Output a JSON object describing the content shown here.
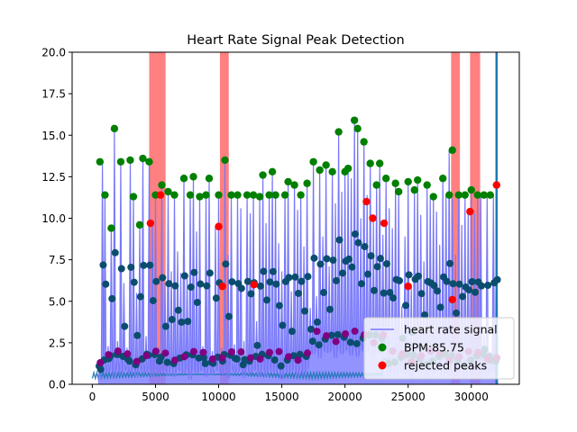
{
  "chart_data": {
    "type": "line",
    "title": "Heart Rate Signal Peak Detection",
    "xlabel": "",
    "ylabel": "",
    "xlim": [
      -1600,
      33800
    ],
    "ylim": [
      0,
      20
    ],
    "xticks": [
      0,
      5000,
      10000,
      15000,
      20000,
      25000,
      30000
    ],
    "yticks": [
      0.0,
      2.5,
      5.0,
      7.5,
      10.0,
      12.5,
      15.0,
      17.5,
      20.0
    ],
    "ytick_labels": [
      "0.0",
      "2.5",
      "5.0",
      "7.5",
      "10.0",
      "12.5",
      "15.0",
      "17.5",
      "20.0"
    ],
    "legend_position": "lower-right",
    "legend": [
      {
        "label": "heart rate signal",
        "kind": "line",
        "color": "#7878f8"
      },
      {
        "label": "BPM:85.75",
        "kind": "marker",
        "color": "#008000"
      },
      {
        "label": "rejected peaks",
        "kind": "marker",
        "color": "#ff0000"
      }
    ],
    "rejected_regions": [
      {
        "x0": 4500,
        "x1": 5800
      },
      {
        "x0": 10100,
        "x1": 10800
      },
      {
        "x0": 28400,
        "x1": 29100
      },
      {
        "x0": 29900,
        "x1": 30700
      }
    ],
    "vertical_line_x": 32000,
    "series": [
      {
        "name": "heart rate signal",
        "color": "#7878f8",
        "x": [
          600,
          800,
          1000,
          1250,
          1500,
          1750,
          2000,
          2250,
          2500,
          2750,
          3000,
          3250,
          3500,
          3750,
          4000,
          4250,
          4500,
          4750,
          5000,
          5250,
          5500,
          5750,
          6000,
          6250,
          6500,
          6750,
          7000,
          7250,
          7500,
          7750,
          8000,
          8250,
          8500,
          8750,
          9000,
          9250,
          9500,
          9750,
          10000,
          10250,
          10500,
          10750,
          11000,
          11250,
          11500,
          11750,
          12000,
          12250,
          12500,
          12750,
          13000,
          13250,
          13500,
          13750,
          14000,
          14250,
          14500,
          14750,
          15000,
          15250,
          15500,
          15750,
          16000,
          16250,
          16500,
          16750,
          17000,
          17250,
          17500,
          17750,
          18000,
          18250,
          18500,
          18750,
          19000,
          19250,
          19500,
          19750,
          20000,
          20250,
          20500,
          20750,
          21000,
          21250,
          21500,
          21750,
          22000,
          22250,
          22500,
          22750,
          23000,
          23250,
          23500,
          23750,
          24000,
          24250,
          24500,
          24750,
          25000,
          25250,
          25500,
          25750,
          26000,
          26250,
          26500,
          26750,
          27000,
          27250,
          27500,
          27750,
          28000,
          28250,
          28500,
          28750,
          29000,
          29250,
          29500,
          29750,
          30000,
          30250,
          30500,
          30750,
          31000,
          31250,
          31500,
          31750,
          32000
        ],
        "values": [
          1.5,
          13.4,
          11.4,
          2.3,
          9.4,
          15.4,
          2.6,
          13.4,
          6.1,
          2.2,
          13.5,
          11.3,
          5.5,
          9.6,
          13.6,
          2.9,
          13.4,
          9.7,
          11.4,
          2.2,
          12.0,
          6.1,
          11.6,
          6.8,
          11.4,
          8.0,
          6.7,
          12.4,
          6.6,
          11.4,
          12.5,
          9.2,
          11.3,
          2.3,
          11.4,
          12.4,
          2.0,
          9.5,
          11.4,
          2.2,
          13.5,
          7.8,
          11.4,
          2.4,
          11.4,
          10.6,
          2.6,
          11.4,
          10.3,
          11.4,
          3.8,
          11.3,
          12.6,
          9.7,
          11.4,
          12.8,
          11.4,
          8.5,
          6.8,
          11.4,
          12.2,
          5.6,
          12.0,
          10.5,
          11.4,
          8.3,
          12.1,
          4.6,
          13.4,
          5.3,
          12.9,
          8.9,
          13.2,
          7.1,
          12.8,
          10.9,
          15.2,
          11.6,
          12.8,
          13.0,
          12.4,
          15.9,
          15.4,
          10.0,
          14.6,
          11.4,
          13.3,
          9.8,
          12.0,
          13.3,
          9.0,
          12.4,
          10.6,
          9.4,
          12.1,
          11.6,
          4.7,
          8.9,
          12.2,
          5.9,
          11.7,
          12.3,
          10.2,
          7.4,
          12.0,
          11.2,
          11.3,
          10.4,
          8.4,
          12.4,
          11.4,
          14.1,
          11.2,
          7.8,
          11.4,
          9.6,
          11.4,
          10.4,
          11.7,
          10.3,
          11.4,
          11.4,
          3.2,
          11.4,
          2.0,
          11.4,
          12.0
        ]
      },
      {
        "name": "BPM:85.75",
        "color": "#008000",
        "points": [
          [
            600,
            13.4
          ],
          [
            1000,
            11.4
          ],
          [
            1500,
            9.4
          ],
          [
            1750,
            15.4
          ],
          [
            2250,
            13.4
          ],
          [
            3000,
            13.5
          ],
          [
            3250,
            11.3
          ],
          [
            3750,
            9.6
          ],
          [
            4000,
            13.6
          ],
          [
            4500,
            13.4
          ],
          [
            5000,
            11.4
          ],
          [
            5500,
            12.0
          ],
          [
            6000,
            11.6
          ],
          [
            6500,
            11.4
          ],
          [
            7250,
            12.4
          ],
          [
            7750,
            11.4
          ],
          [
            8000,
            12.5
          ],
          [
            8500,
            11.3
          ],
          [
            9000,
            11.4
          ],
          [
            9250,
            12.4
          ],
          [
            10000,
            11.4
          ],
          [
            10500,
            13.5
          ],
          [
            11000,
            11.4
          ],
          [
            11500,
            11.4
          ],
          [
            12250,
            11.4
          ],
          [
            12750,
            11.4
          ],
          [
            13250,
            11.3
          ],
          [
            13500,
            12.6
          ],
          [
            14000,
            11.4
          ],
          [
            14250,
            12.8
          ],
          [
            14500,
            11.4
          ],
          [
            15250,
            11.4
          ],
          [
            15500,
            12.2
          ],
          [
            16000,
            12.0
          ],
          [
            16500,
            11.4
          ],
          [
            17000,
            12.1
          ],
          [
            17500,
            13.4
          ],
          [
            18000,
            12.9
          ],
          [
            18500,
            13.2
          ],
          [
            19000,
            12.8
          ],
          [
            19500,
            15.2
          ],
          [
            20000,
            12.8
          ],
          [
            20250,
            13.0
          ],
          [
            20750,
            15.9
          ],
          [
            21000,
            15.4
          ],
          [
            21500,
            14.6
          ],
          [
            22000,
            13.3
          ],
          [
            22500,
            12.0
          ],
          [
            22750,
            13.3
          ],
          [
            23250,
            12.4
          ],
          [
            24000,
            12.1
          ],
          [
            24250,
            11.6
          ],
          [
            25000,
            12.2
          ],
          [
            25500,
            11.7
          ],
          [
            25750,
            12.3
          ],
          [
            26500,
            12.0
          ],
          [
            27000,
            11.3
          ],
          [
            27750,
            12.4
          ],
          [
            28250,
            11.4
          ],
          [
            28500,
            14.1
          ],
          [
            29000,
            11.4
          ],
          [
            29500,
            11.4
          ],
          [
            30000,
            11.7
          ],
          [
            30500,
            11.4
          ],
          [
            31000,
            11.4
          ],
          [
            31500,
            11.4
          ]
        ]
      },
      {
        "name": "rejected peaks",
        "color": "#ff0000",
        "points": [
          [
            4600,
            9.7
          ],
          [
            5400,
            11.4
          ],
          [
            10000,
            9.5
          ],
          [
            10300,
            5.9
          ],
          [
            12800,
            6.0
          ],
          [
            21700,
            11.0
          ],
          [
            22200,
            10.0
          ],
          [
            23100,
            9.7
          ],
          [
            25000,
            5.9
          ],
          [
            28500,
            5.1
          ],
          [
            29900,
            10.4
          ],
          [
            32000,
            12.0
          ]
        ]
      }
    ]
  }
}
